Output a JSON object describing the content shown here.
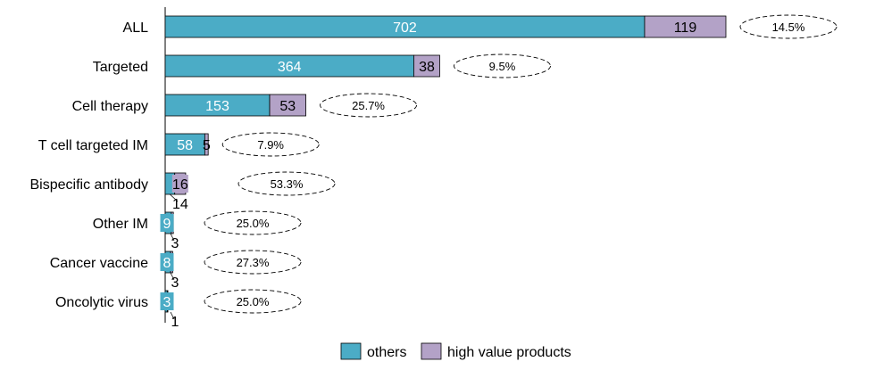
{
  "chart_data": {
    "type": "bar",
    "orientation": "horizontal",
    "stacked": true,
    "title": "",
    "categories": [
      "ALL",
      "Targeted",
      "Cell therapy",
      "T cell targeted IM",
      "Bispecific antibody",
      "Other IM",
      "Cancer vaccine",
      "Oncolytic virus"
    ],
    "series": [
      {
        "name": "others",
        "color": "#4BACC6",
        "values": [
          702,
          364,
          153,
          58,
          14,
          9,
          8,
          3
        ]
      },
      {
        "name": "high value products",
        "color": "#B3A2C7",
        "values": [
          119,
          38,
          53,
          5,
          16,
          3,
          3,
          1
        ]
      }
    ],
    "percent_labels": [
      "14.5%",
      "9.5%",
      "25.7%",
      "7.9%",
      "53.3%",
      "25.0%",
      "27.3%",
      "25.0%"
    ],
    "xlim": [
      0,
      821
    ],
    "grid": false,
    "legend_position": "bottom"
  }
}
